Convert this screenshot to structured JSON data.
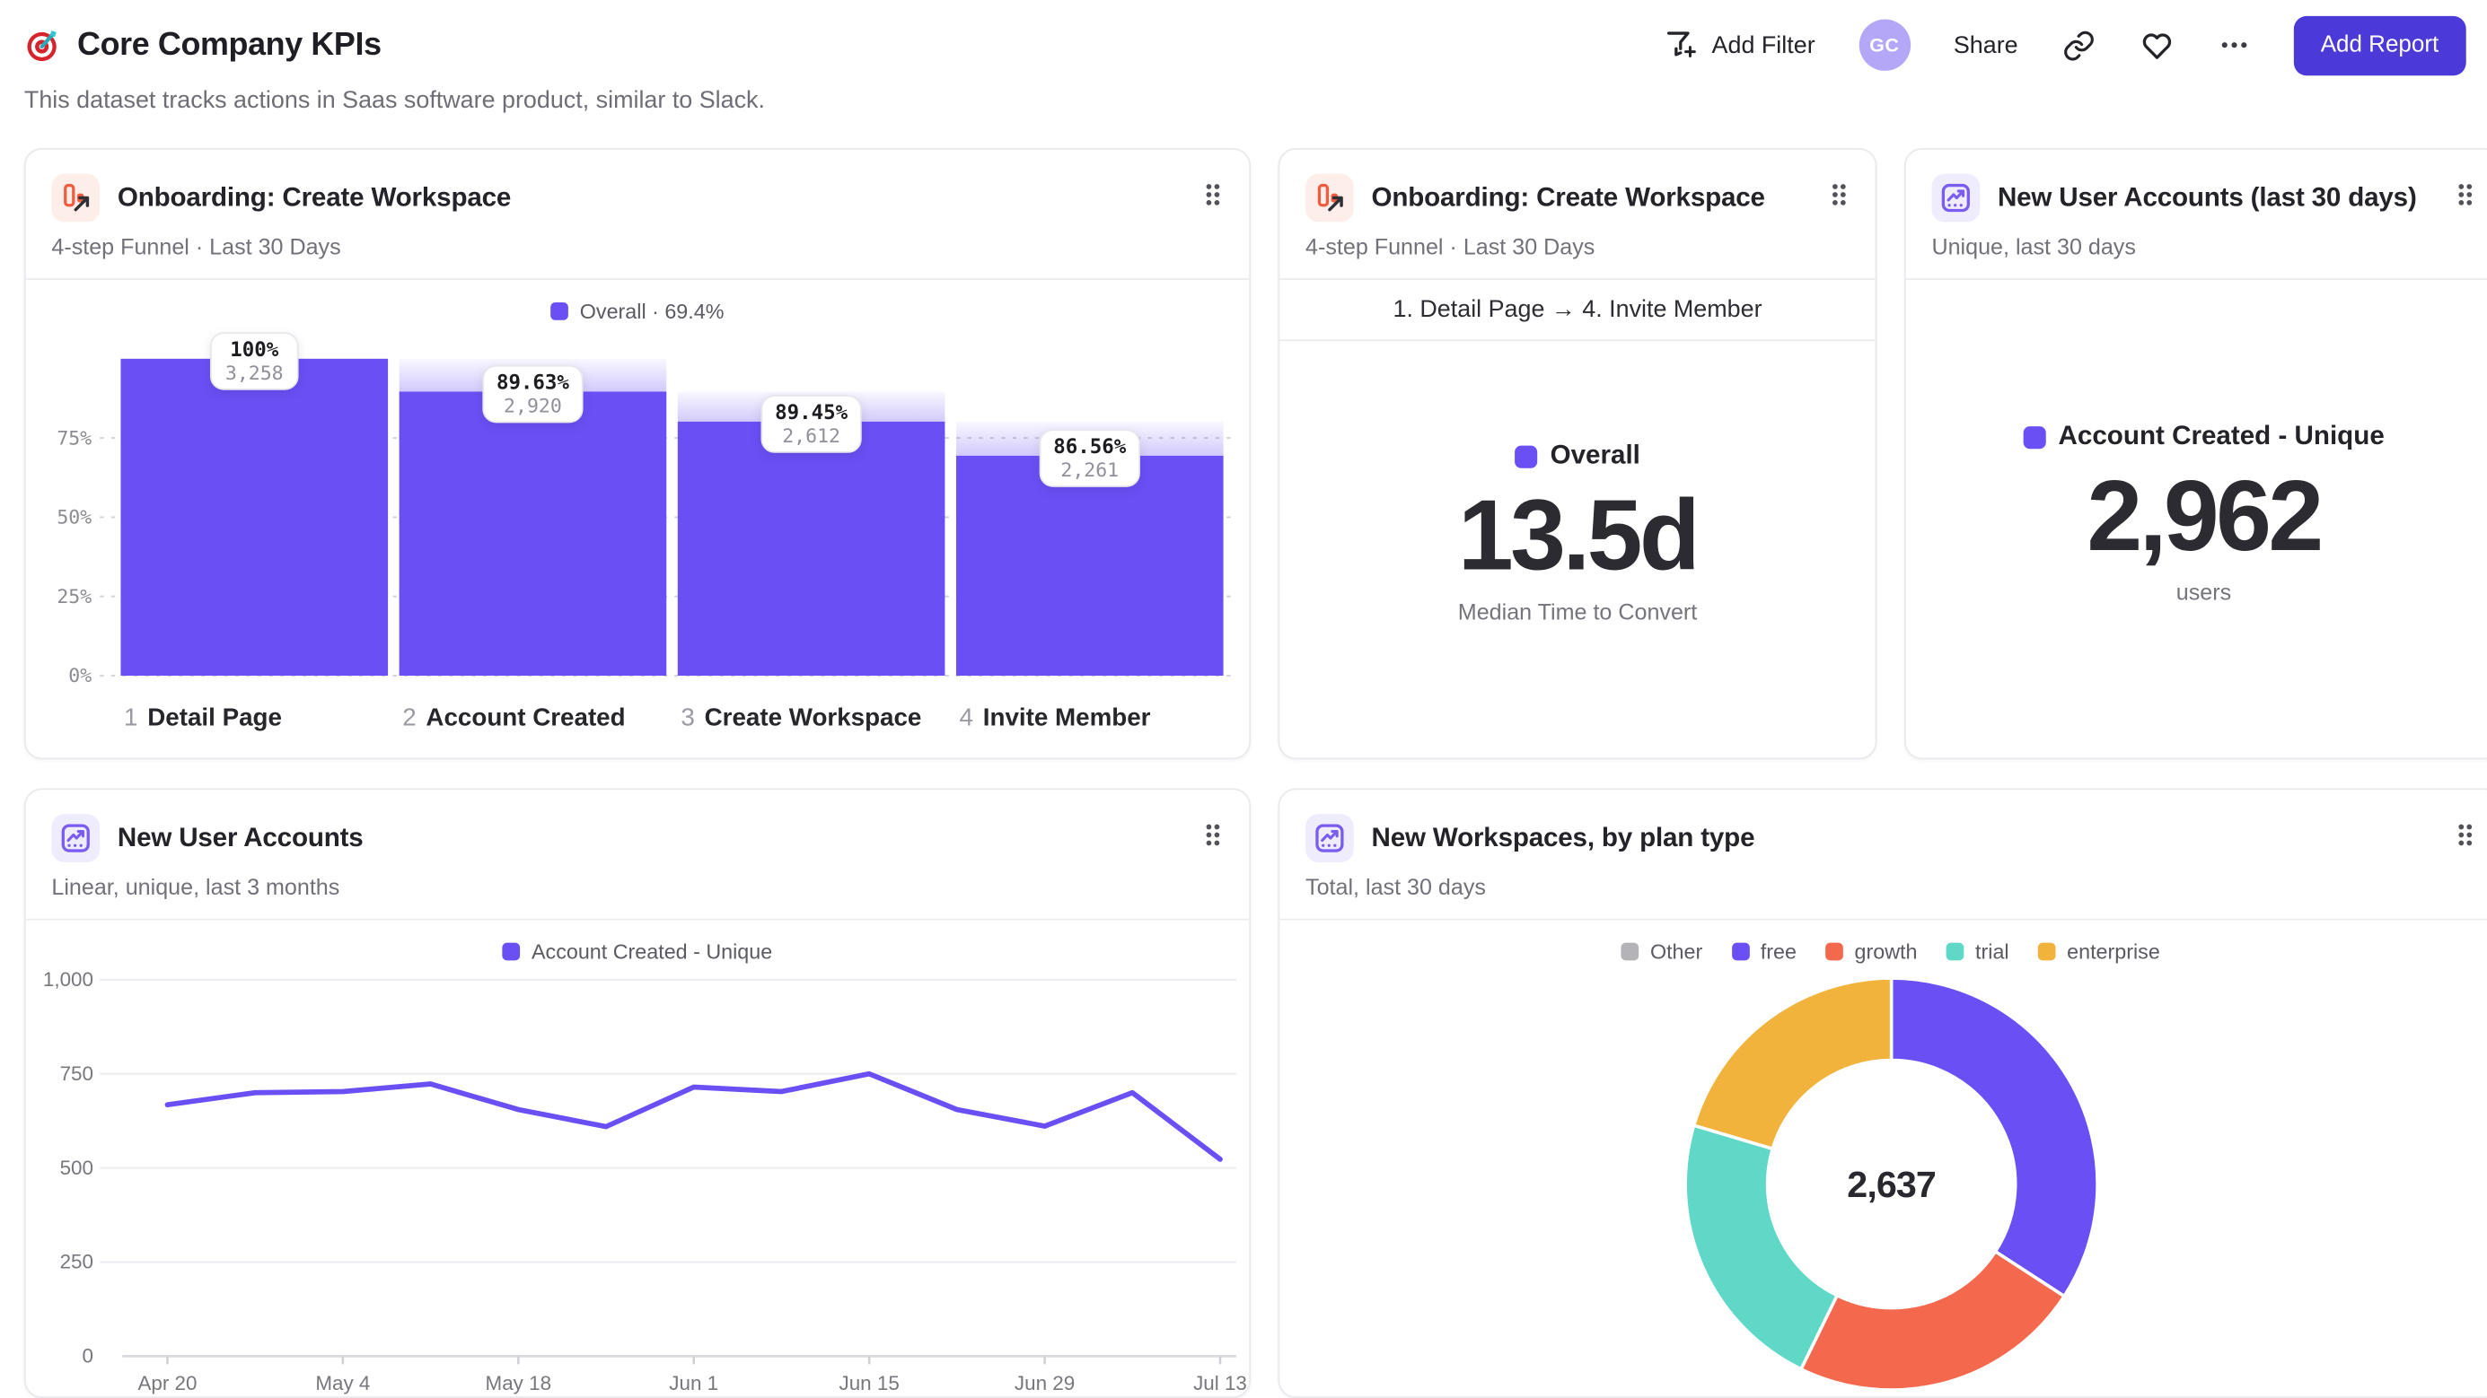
{
  "page": {
    "title": "Core Company KPIs",
    "subtitle": "This dataset tracks actions in Saas software product, similar to Slack."
  },
  "header_actions": {
    "add_filter": "Add Filter",
    "avatar_initials": "GC",
    "share": "Share",
    "add_report": "Add Report"
  },
  "colors": {
    "accent": "#6A4FF4",
    "button": "#4B3AD8",
    "growth": "#F4694E",
    "trial": "#5FD8C7",
    "enterprise": "#F1B33C",
    "other": "#B3B3B8"
  },
  "cards": {
    "funnel": {
      "title": "Onboarding: Create Workspace",
      "subtitle": "4-step Funnel · Last 30 Days",
      "legend": "Overall · 69.4%"
    },
    "time_to_convert": {
      "title": "Onboarding: Create Workspace",
      "subtitle": "4-step Funnel · Last 30 Days",
      "range_label": "1. Detail Page → 4. Invite Member",
      "legend": "Overall",
      "value": "13.5d",
      "caption": "Median Time to Convert"
    },
    "new_accounts_30d": {
      "title": "New User Accounts (last 30 days)",
      "subtitle": "Unique, last 30 days",
      "legend": "Account Created - Unique",
      "value": "2,962",
      "caption": "users"
    },
    "new_accounts_trend": {
      "title": "New User Accounts",
      "subtitle": "Linear, unique, last 3 months",
      "legend": "Account Created - Unique"
    },
    "workspaces_by_plan": {
      "title": "New Workspaces, by plan type",
      "subtitle": "Total, last 30 days"
    }
  },
  "chart_data": [
    {
      "id": "funnel",
      "type": "bar",
      "title": "Onboarding: Create Workspace",
      "legend": [
        {
          "label": "Overall · 69.4%",
          "color": "#6A4FF4"
        }
      ],
      "yticks": [
        "0%",
        "25%",
        "50%",
        "75%"
      ],
      "ylim": [
        0,
        100
      ],
      "steps": [
        {
          "num": "1",
          "label": "Detail Page",
          "pct_label": "100%",
          "count_label": "3,258",
          "count": 3258,
          "overall_pct": 100.0
        },
        {
          "num": "2",
          "label": "Account Created",
          "pct_label": "89.63%",
          "count_label": "2,920",
          "count": 2920,
          "overall_pct": 89.63
        },
        {
          "num": "3",
          "label": "Create Workspace",
          "pct_label": "89.45%",
          "count_label": "2,612",
          "count": 2612,
          "overall_pct": 80.17
        },
        {
          "num": "4",
          "label": "Invite Member",
          "pct_label": "86.56%",
          "count_label": "2,261",
          "count": 2261,
          "overall_pct": 69.4
        }
      ]
    },
    {
      "id": "time_to_convert",
      "type": "metric",
      "title": "Onboarding: Create Workspace",
      "range": "1. Detail Page → 4. Invite Member",
      "legend": "Overall",
      "value": "13.5d",
      "caption": "Median Time to Convert"
    },
    {
      "id": "new_accounts_30d",
      "type": "metric",
      "title": "New User Accounts (last 30 days)",
      "legend": "Account Created - Unique",
      "value": "2,962",
      "caption": "users"
    },
    {
      "id": "line",
      "type": "line",
      "title": "New User Accounts",
      "series": [
        {
          "name": "Account Created - Unique",
          "color": "#6A4FF4",
          "values": [
            668,
            700,
            703,
            723,
            655,
            610,
            715,
            703,
            750,
            655,
            611,
            700,
            523
          ]
        }
      ],
      "x_tick_labels": [
        "Apr 20",
        "May 4",
        "May 18",
        "Jun 1",
        "Jun 15",
        "Jun 29",
        "Jul 13"
      ],
      "x_tick_indices": [
        0,
        2,
        4,
        6,
        8,
        10,
        12
      ],
      "yticks": [
        0,
        250,
        500,
        750,
        1000
      ],
      "ytick_labels": [
        "0",
        "250",
        "500",
        "750",
        "1,000"
      ],
      "ylim": [
        0,
        1000
      ],
      "grid": true,
      "legend_position": "top"
    },
    {
      "id": "donut",
      "type": "pie",
      "title": "New Workspaces, by plan type",
      "center_label": "2,637",
      "total": 2637,
      "slices": [
        {
          "label": "Other",
          "value": 0,
          "color": "#B3B3B8"
        },
        {
          "label": "free",
          "value": 901,
          "color": "#6A4FF4"
        },
        {
          "label": "growth",
          "value": 608,
          "color": "#F4694E"
        },
        {
          "label": "trial",
          "value": 590,
          "color": "#5FD8C7"
        },
        {
          "label": "enterprise",
          "value": 538,
          "color": "#F1B33C"
        }
      ],
      "legend_position": "top"
    }
  ]
}
